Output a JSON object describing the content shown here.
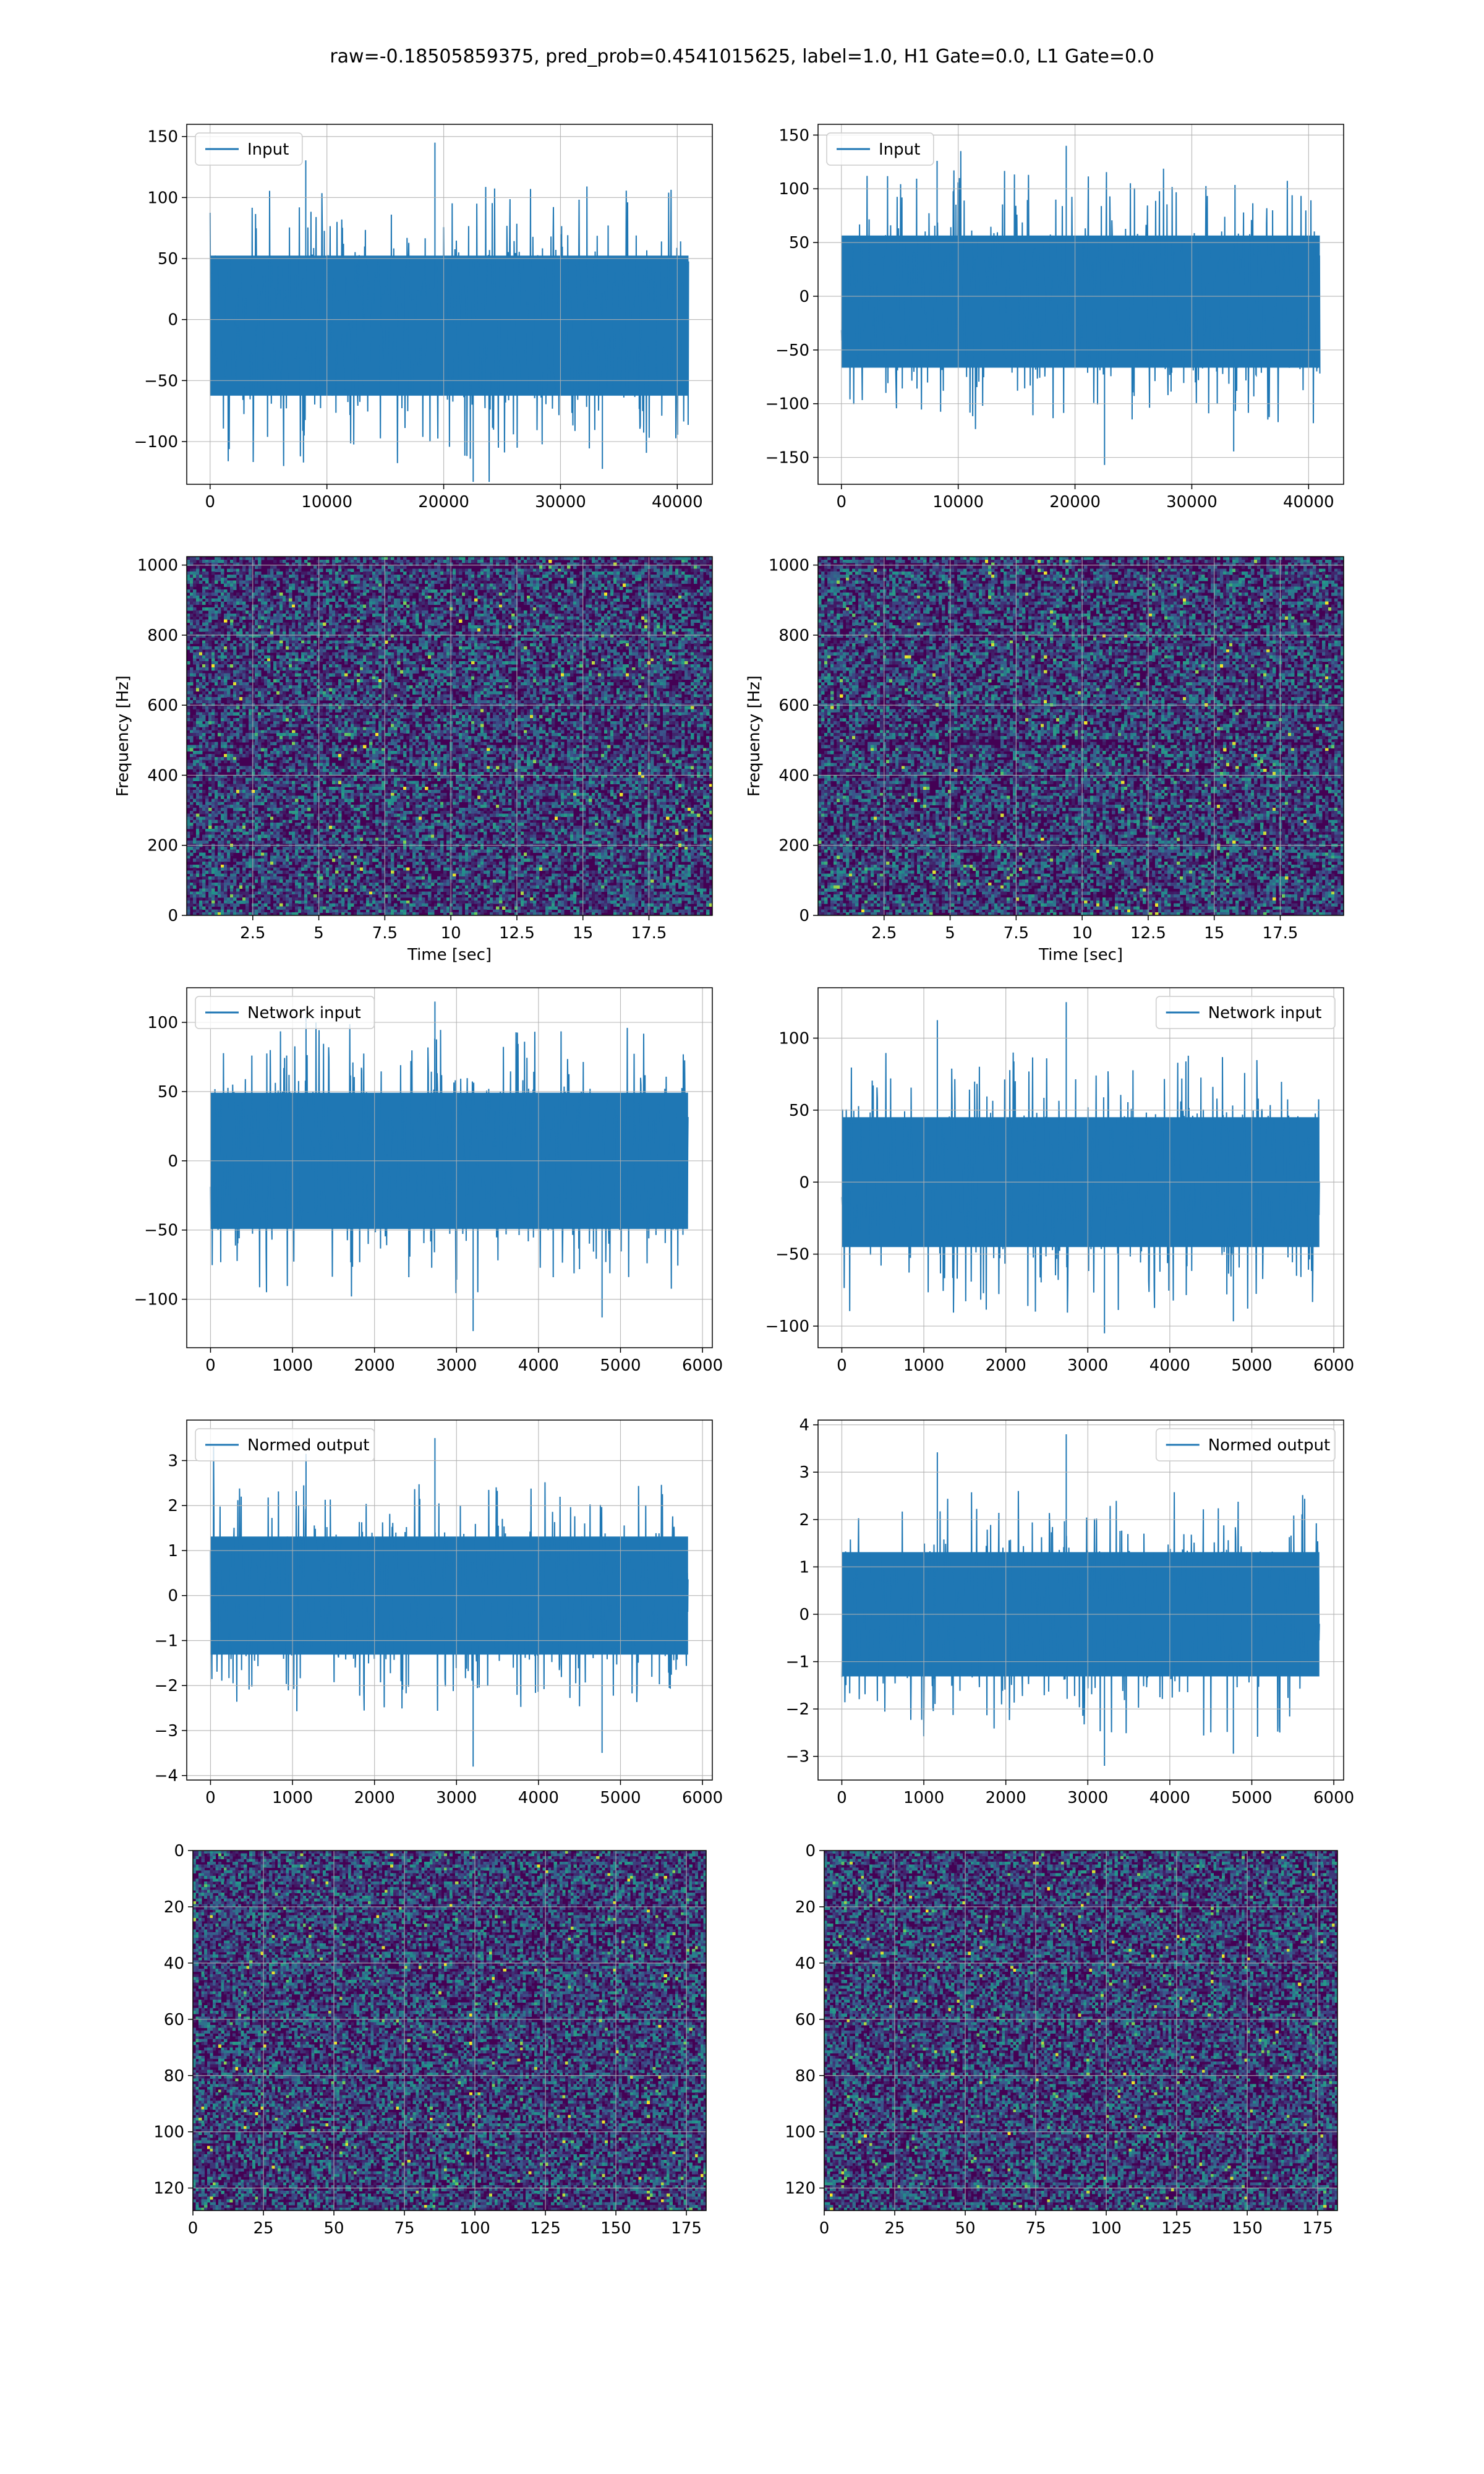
{
  "figure": {
    "suptitle": "raw=-0.18505859375, pred_prob=0.4541015625, label=1.0, H1 Gate=0.0, L1 Gate=0.0"
  },
  "colors": {
    "line": "#1f77b4",
    "grid": "#b0b0b0",
    "viridis": [
      "#440154",
      "#3b528b",
      "#21918c",
      "#5ec962",
      "#fde725"
    ]
  },
  "chart_data": [
    {
      "id": "input-h1",
      "type": "line",
      "legend": "top-left",
      "series": [
        {
          "name": "Input",
          "x_range": [
            0,
            40960
          ],
          "envelope": [
            -133,
            145
          ],
          "typical_band": [
            -75,
            65
          ]
        }
      ],
      "xlim": [
        -2000,
        43000
      ],
      "ylim": [
        -135,
        160
      ],
      "xticks": [
        0,
        10000,
        20000,
        30000,
        40000
      ],
      "yticks": [
        -100,
        -50,
        0,
        50,
        100,
        150
      ],
      "xlabel": "",
      "ylabel": "",
      "grid": true
    },
    {
      "id": "input-l1",
      "type": "line",
      "legend": "top-left",
      "series": [
        {
          "name": "Input",
          "x_range": [
            0,
            40960
          ],
          "envelope": [
            -157,
            140
          ],
          "typical_band": [
            -80,
            70
          ]
        }
      ],
      "xlim": [
        -2000,
        43000
      ],
      "ylim": [
        -175,
        160
      ],
      "xticks": [
        0,
        10000,
        20000,
        30000,
        40000
      ],
      "yticks": [
        -150,
        -100,
        -50,
        0,
        50,
        100,
        150
      ],
      "xlabel": "",
      "ylabel": "",
      "grid": true
    },
    {
      "id": "spectrogram-h1",
      "type": "heatmap",
      "colormap": "viridis",
      "xlim": [
        0,
        19.9
      ],
      "ylim": [
        0,
        1024
      ],
      "xticks": [
        2.5,
        5.0,
        7.5,
        10.0,
        12.5,
        15.0,
        17.5
      ],
      "yticks": [
        0,
        200,
        400,
        600,
        800,
        1000
      ],
      "xlabel": "Time [sec]",
      "ylabel": "Frequency [Hz]",
      "grid": true
    },
    {
      "id": "spectrogram-l1",
      "type": "heatmap",
      "colormap": "viridis",
      "xlim": [
        0,
        19.9
      ],
      "ylim": [
        0,
        1024
      ],
      "xticks": [
        2.5,
        5.0,
        7.5,
        10.0,
        12.5,
        15.0,
        17.5
      ],
      "yticks": [
        0,
        200,
        400,
        600,
        800,
        1000
      ],
      "xlabel": "Time [sec]",
      "ylabel": "Frequency [Hz]",
      "grid": true
    },
    {
      "id": "network-input-h1",
      "type": "line",
      "legend": "top-left",
      "series": [
        {
          "name": "Network input",
          "x_range": [
            0,
            5824
          ],
          "envelope": [
            -123,
            115
          ],
          "typical_band": [
            -60,
            60
          ]
        }
      ],
      "xlim": [
        -290,
        6120
      ],
      "ylim": [
        -135,
        125
      ],
      "xticks": [
        0,
        1000,
        2000,
        3000,
        4000,
        5000,
        6000
      ],
      "yticks": [
        -100,
        -50,
        0,
        50,
        100
      ],
      "xlabel": "",
      "ylabel": "",
      "grid": true
    },
    {
      "id": "network-input-l1",
      "type": "line",
      "legend": "top-right",
      "series": [
        {
          "name": "Network input",
          "x_range": [
            0,
            5824
          ],
          "envelope": [
            -105,
            125
          ],
          "typical_band": [
            -55,
            55
          ]
        }
      ],
      "xlim": [
        -290,
        6120
      ],
      "ylim": [
        -115,
        135
      ],
      "xticks": [
        0,
        1000,
        2000,
        3000,
        4000,
        5000,
        6000
      ],
      "yticks": [
        -100,
        -50,
        0,
        50,
        100
      ],
      "xlabel": "",
      "ylabel": "",
      "grid": true
    },
    {
      "id": "normed-output-h1",
      "type": "line",
      "legend": "top-left",
      "series": [
        {
          "name": "Normed output",
          "x_range": [
            0,
            5824
          ],
          "envelope": [
            -3.8,
            3.5
          ],
          "typical_band": [
            -1.6,
            1.6
          ]
        }
      ],
      "xlim": [
        -290,
        6120
      ],
      "ylim": [
        -4.1,
        3.9
      ],
      "xticks": [
        0,
        1000,
        2000,
        3000,
        4000,
        5000,
        6000
      ],
      "yticks": [
        -4,
        -3,
        -2,
        -1,
        0,
        1,
        2,
        3
      ],
      "xlabel": "",
      "ylabel": "",
      "grid": true
    },
    {
      "id": "normed-output-l1",
      "type": "line",
      "legend": "top-right",
      "series": [
        {
          "name": "Normed output",
          "x_range": [
            0,
            5824
          ],
          "envelope": [
            -3.2,
            3.8
          ],
          "typical_band": [
            -1.6,
            1.6
          ]
        }
      ],
      "xlim": [
        -290,
        6120
      ],
      "ylim": [
        -3.5,
        4.1
      ],
      "xticks": [
        0,
        1000,
        2000,
        3000,
        4000,
        5000,
        6000
      ],
      "yticks": [
        -3,
        -2,
        -1,
        0,
        1,
        2,
        3,
        4
      ],
      "xlabel": "",
      "ylabel": "",
      "grid": true
    },
    {
      "id": "matrix-h1",
      "type": "heatmap",
      "colormap": "viridis",
      "shape": [
        128,
        182
      ],
      "y_inverted": true,
      "xlim": [
        0,
        182
      ],
      "ylim": [
        128,
        0
      ],
      "xticks": [
        0,
        25,
        50,
        75,
        100,
        125,
        150,
        175
      ],
      "yticks": [
        0,
        20,
        40,
        60,
        80,
        100,
        120
      ],
      "xlabel": "",
      "ylabel": "",
      "grid": true
    },
    {
      "id": "matrix-l1",
      "type": "heatmap",
      "colormap": "viridis",
      "shape": [
        128,
        182
      ],
      "y_inverted": true,
      "xlim": [
        0,
        182
      ],
      "ylim": [
        128,
        0
      ],
      "xticks": [
        0,
        25,
        50,
        75,
        100,
        125,
        150,
        175
      ],
      "yticks": [
        0,
        20,
        40,
        60,
        80,
        100,
        120
      ],
      "xlabel": "",
      "ylabel": "",
      "grid": true
    }
  ]
}
